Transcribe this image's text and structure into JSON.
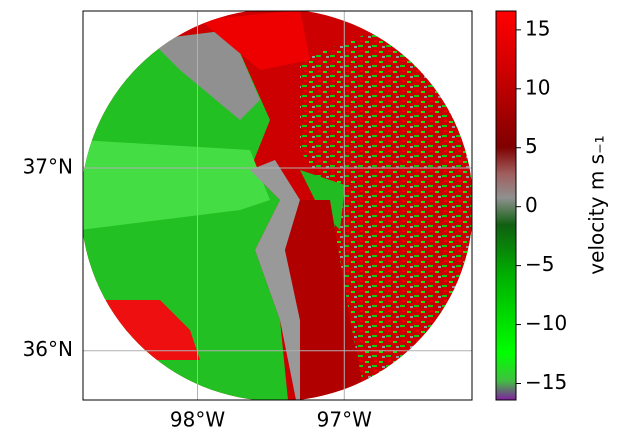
{
  "map": {
    "xlim": [
      -98.78,
      -96.13
    ],
    "ylim": [
      35.73,
      37.86
    ],
    "xticks": [
      {
        "value": -98,
        "label": "98°W"
      },
      {
        "value": -97,
        "label": "97°W"
      }
    ],
    "yticks": [
      {
        "value": 37,
        "label": "37°N"
      },
      {
        "value": 36,
        "label": "36°N"
      }
    ],
    "grid": true
  },
  "colorbar": {
    "label": "velocity m s₋₁",
    "lim": [
      -16.4,
      16.6
    ],
    "ticks": [
      {
        "value": -15,
        "label": "−15"
      },
      {
        "value": -10,
        "label": "−10"
      },
      {
        "value": -5,
        "label": "−5"
      },
      0,
      5,
      10,
      15
    ]
  }
}
